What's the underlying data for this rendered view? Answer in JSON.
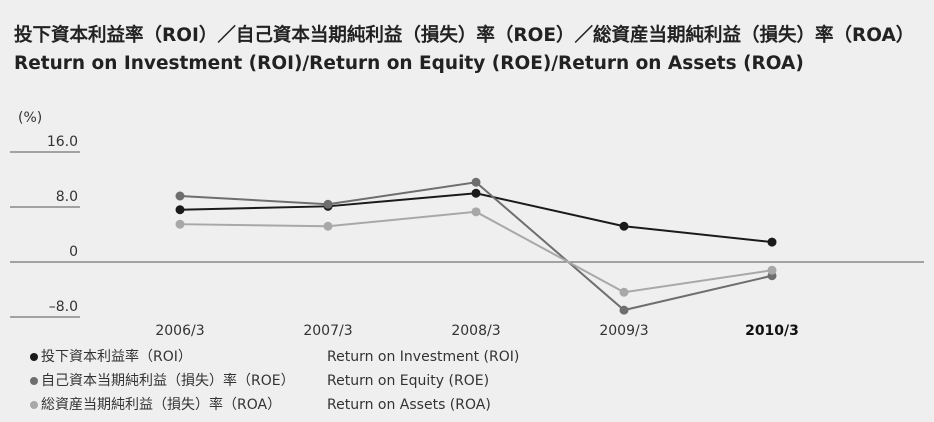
{
  "chart_data": {
    "type": "line",
    "title": "投下資本利益率（ROI）／自己資本当期純利益（損失）率（ROE）／総資産当期純利益（損失）率（ROA）",
    "subtitle": "Return on Investment (ROI)/Return on Equity (ROE)/Return on Assets (ROA)",
    "y_unit": "(%)",
    "categories": [
      "2006/3",
      "2007/3",
      "2008/3",
      "2009/3",
      "2010/3"
    ],
    "highlight_index": 4,
    "ylim": [
      -8,
      16
    ],
    "yticks": [
      {
        "value": 16,
        "label": "16.0"
      },
      {
        "value": 8,
        "label": "8.0"
      },
      0,
      {
        "value": -8,
        "label": "–8.0"
      }
    ],
    "series": [
      {
        "name": "投下資本利益率（ROI）",
        "name_en": "Return on Investment (ROI)",
        "color": "#1a1a1a",
        "values": [
          7.6,
          8.1,
          10.0,
          5.2,
          2.9
        ]
      },
      {
        "name": "自己資本当期純利益（損失）率（ROE）",
        "name_en": "Return on Equity (ROE)",
        "color": "#6e6e6e",
        "values": [
          9.6,
          8.4,
          11.6,
          -7.0,
          -2.0
        ]
      },
      {
        "name": "総資産当期純利益（損失）率（ROA）",
        "name_en": "Return on Assets (ROA)",
        "color": "#a8a8a8",
        "values": [
          5.5,
          5.2,
          7.3,
          -4.4,
          -1.2
        ]
      }
    ]
  }
}
